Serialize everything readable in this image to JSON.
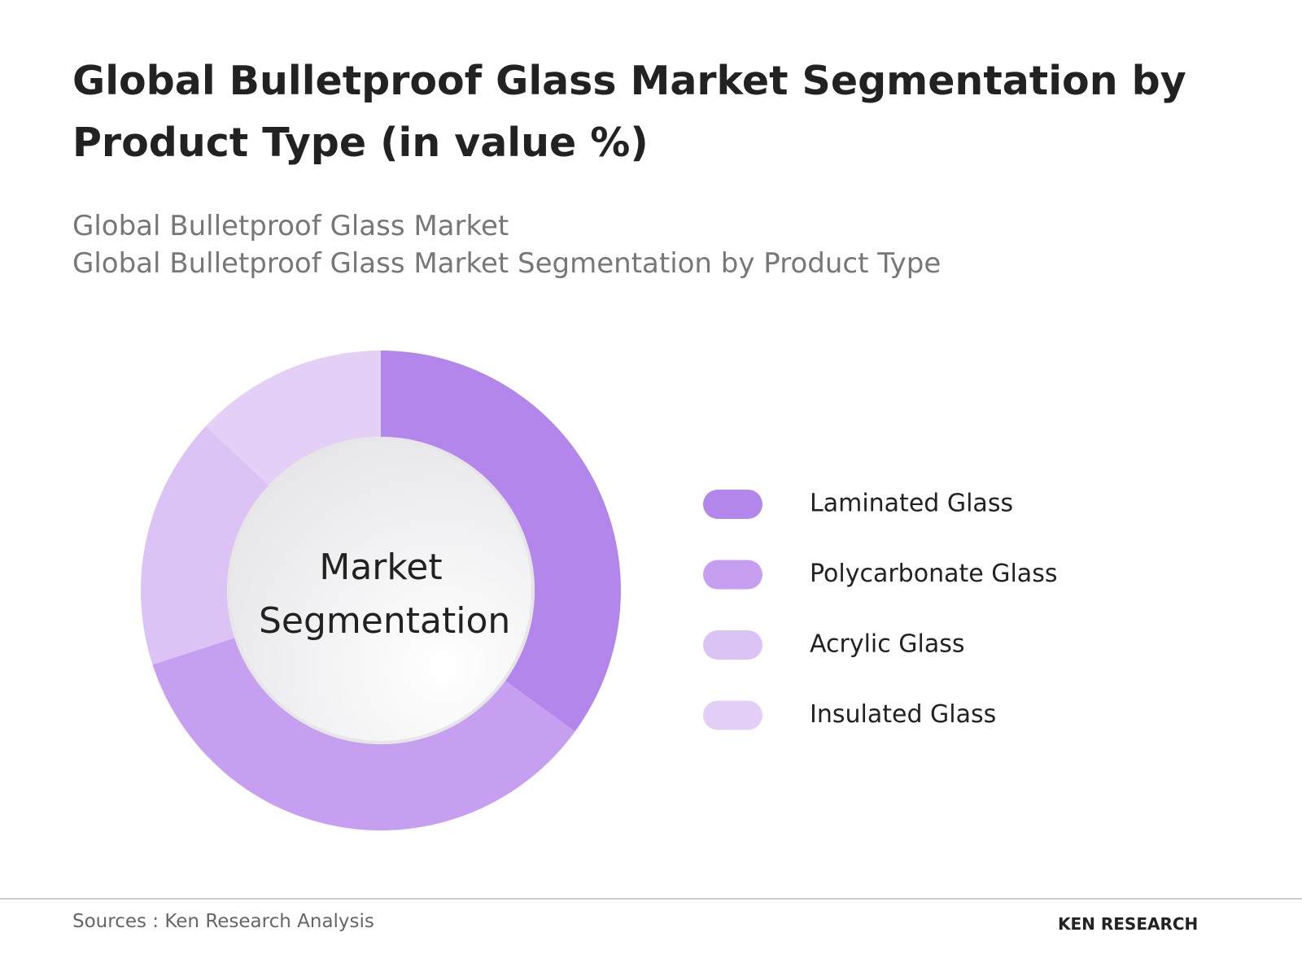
{
  "chart_data": {
    "type": "donut",
    "title": "Global Bulletproof Glass Market Segmentation by Product Type (in value %)",
    "subtitle": [
      "Global Bulletproof Glass Market",
      "Global Bulletproof Glass Market Segmentation by Product Type"
    ],
    "center_label": "Market Segmentation",
    "categories": [
      "Laminated Glass",
      "Polycarbonate Glass",
      "Acrylic Glass",
      "Insulated Glass"
    ],
    "values": [
      35,
      35,
      17,
      13
    ],
    "colors": [
      "#b386ec",
      "#c79ff0",
      "#dcc3f5",
      "#e4d0f7"
    ],
    "legend": "right"
  },
  "footer": {
    "source": "Sources : Ken Research Analysis",
    "brand": "KEN RESEARCH"
  }
}
